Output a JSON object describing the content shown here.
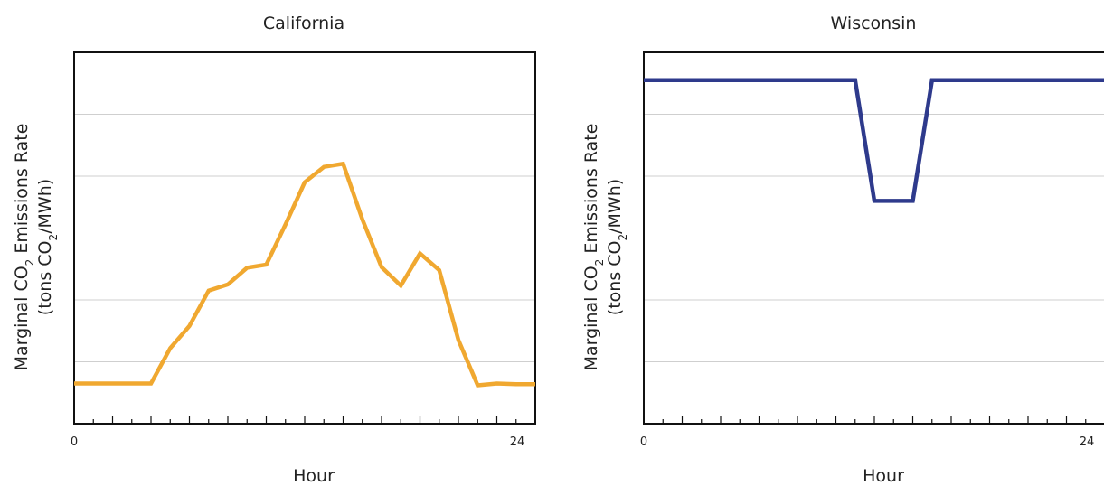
{
  "chart_data": [
    {
      "type": "line",
      "title": "California",
      "xlabel": "Hour",
      "ylabel_line1": "Marginal CO",
      "ylabel_line1_sub": "2",
      "ylabel_line1_rest": " Emissions Rate",
      "ylabel_line2": "(tons CO",
      "ylabel_line2_sub": "2",
      "ylabel_line2_rest": "/MWh)",
      "xlim": [
        0,
        24
      ],
      "x_tick_labels": [
        "0",
        "24"
      ],
      "ylim": [
        0,
        6
      ],
      "grid": true,
      "color": "#F0A830",
      "x": [
        0,
        1,
        2,
        3,
        4,
        5,
        6,
        7,
        8,
        9,
        10,
        11,
        12,
        13,
        14,
        15,
        16,
        17,
        18,
        19,
        20,
        21,
        22,
        23,
        24
      ],
      "values": [
        0.65,
        0.65,
        0.65,
        0.65,
        0.65,
        1.22,
        1.58,
        2.15,
        2.25,
        2.52,
        2.57,
        3.22,
        3.9,
        4.15,
        4.2,
        3.3,
        2.53,
        2.23,
        2.75,
        2.48,
        1.35,
        0.62,
        0.65,
        0.64,
        0.64
      ]
    },
    {
      "type": "line",
      "title": "Wisconsin",
      "xlabel": "Hour",
      "ylabel_line1": "Marginal CO",
      "ylabel_line1_sub": "2",
      "ylabel_line1_rest": " Emissions Rate",
      "ylabel_line2": "(tons CO",
      "ylabel_line2_sub": "2",
      "ylabel_line2_rest": "/MWh)",
      "xlim": [
        0,
        24
      ],
      "x_tick_labels": [
        "0",
        "24"
      ],
      "ylim": [
        0,
        6
      ],
      "grid": true,
      "color": "#2E3A8C",
      "x": [
        0,
        11,
        12,
        14,
        15,
        24
      ],
      "values": [
        5.55,
        5.55,
        3.6,
        3.6,
        5.55,
        5.55
      ]
    }
  ]
}
